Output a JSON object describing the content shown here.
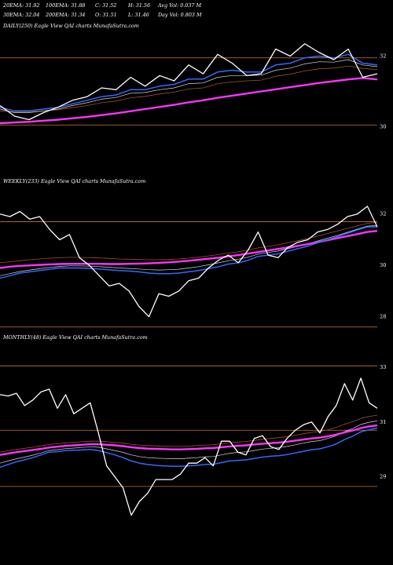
{
  "header": {
    "line1": [
      "20EMA: 31.92",
      "100EMA: 31.88",
      "C: 31.52",
      "H: 31.56",
      "Avg Vol: 0.037 M"
    ],
    "line2": [
      "30EMA: 32.04",
      "200EMA: 31.34",
      "O: 31.51",
      "L: 31.46",
      "Day Vol: 0.803 M"
    ]
  },
  "colors": {
    "price": "#ffffff",
    "ema_fast": "#2f6bff",
    "ema_slow": "#ff33ff",
    "ma_white": "#dcdcdc",
    "ma_brown": "#a0522d",
    "level_line": "#cc7a29",
    "background": "#000000"
  },
  "chart_data": [
    {
      "type": "line",
      "label": "DAILY(250) Eagle  View  QAI charts MunafaSutra.com",
      "ylim": [
        29.7,
        32.7
      ],
      "yticks": [
        32,
        30
      ],
      "levels": [
        31.95,
        30.05
      ],
      "series": [
        {
          "role": "price",
          "values": [
            30.6,
            30.3,
            30.2,
            30.4,
            30.55,
            30.75,
            30.85,
            31.1,
            31.05,
            31.4,
            31.15,
            31.45,
            31.3,
            31.75,
            31.5,
            32.05,
            31.8,
            31.45,
            31.5,
            32.2,
            32.0,
            32.35,
            32.1,
            31.9,
            32.2,
            31.4,
            31.5
          ]
        },
        {
          "role": "ema_fast",
          "values": [
            30.55,
            30.45,
            30.45,
            30.5,
            30.55,
            30.65,
            30.75,
            30.85,
            30.9,
            31.05,
            31.05,
            31.15,
            31.2,
            31.35,
            31.35,
            31.55,
            31.6,
            31.55,
            31.55,
            31.75,
            31.8,
            31.95,
            32.0,
            31.95,
            32.05,
            31.8,
            31.75
          ]
        },
        {
          "role": "ema_slow",
          "values": [
            30.1,
            30.12,
            30.14,
            30.17,
            30.2,
            30.24,
            30.28,
            30.33,
            30.38,
            30.44,
            30.5,
            30.56,
            30.62,
            30.69,
            30.75,
            30.82,
            30.88,
            30.94,
            31.0,
            31.06,
            31.12,
            31.18,
            31.24,
            31.29,
            31.34,
            31.38,
            31.34
          ]
        },
        {
          "role": "ma_white",
          "values": [
            30.5,
            30.4,
            30.4,
            30.45,
            30.5,
            30.6,
            30.68,
            30.78,
            30.83,
            30.95,
            30.97,
            31.05,
            31.1,
            31.22,
            31.24,
            31.4,
            31.45,
            31.45,
            31.46,
            31.6,
            31.66,
            31.78,
            31.84,
            31.83,
            31.9,
            31.75,
            31.7
          ]
        },
        {
          "role": "ma_brown",
          "values": [
            30.45,
            30.42,
            30.42,
            30.45,
            30.48,
            30.54,
            30.6,
            30.68,
            30.73,
            30.82,
            30.86,
            30.93,
            30.98,
            31.07,
            31.1,
            31.22,
            31.27,
            31.3,
            31.32,
            31.43,
            31.49,
            31.58,
            31.64,
            31.66,
            31.72,
            31.65,
            31.62
          ]
        }
      ]
    },
    {
      "type": "line",
      "label": "WEEKLY(233) Eagle  View  QAI charts MunafaSutra.com",
      "ylim": [
        27.5,
        33.0
      ],
      "yticks": [
        32,
        30,
        28
      ],
      "levels": [
        31.7,
        27.6
      ],
      "series": [
        {
          "role": "price",
          "values": [
            32.0,
            31.9,
            32.1,
            31.8,
            31.9,
            31.4,
            31.0,
            31.2,
            30.3,
            30.0,
            29.6,
            29.2,
            29.3,
            29.0,
            28.4,
            28.0,
            28.9,
            28.8,
            29.0,
            29.4,
            29.5,
            29.9,
            30.2,
            30.4,
            30.1,
            30.6,
            31.3,
            30.4,
            30.3,
            30.7,
            30.9,
            31.0,
            31.3,
            31.4,
            31.6,
            31.9,
            32.0,
            32.3,
            31.5
          ]
        },
        {
          "role": "ema_fast",
          "values": [
            29.5,
            29.6,
            29.7,
            29.75,
            29.8,
            29.85,
            29.9,
            29.9,
            29.9,
            29.88,
            29.86,
            29.83,
            29.8,
            29.78,
            29.75,
            29.7,
            29.68,
            29.68,
            29.7,
            29.75,
            29.8,
            29.87,
            29.95,
            30.05,
            30.1,
            30.2,
            30.35,
            30.4,
            30.45,
            30.55,
            30.65,
            30.75,
            30.88,
            31.0,
            31.12,
            31.25,
            31.38,
            31.5,
            31.5
          ]
        },
        {
          "role": "ema_slow",
          "values": [
            29.9,
            29.95,
            29.98,
            30.0,
            30.02,
            30.04,
            30.05,
            30.06,
            30.06,
            30.06,
            30.06,
            30.05,
            30.05,
            30.06,
            30.07,
            30.08,
            30.1,
            30.12,
            30.15,
            30.18,
            30.22,
            30.26,
            30.3,
            30.35,
            30.4,
            30.46,
            30.52,
            30.58,
            30.64,
            30.7,
            30.76,
            30.83,
            30.9,
            30.98,
            31.06,
            31.14,
            31.22,
            31.3,
            31.34
          ]
        },
        {
          "role": "ma_white",
          "values": [
            29.6,
            29.68,
            29.76,
            29.82,
            29.87,
            29.92,
            29.96,
            29.98,
            29.98,
            29.97,
            29.95,
            29.93,
            29.9,
            29.88,
            29.86,
            29.83,
            29.82,
            29.83,
            29.85,
            29.9,
            29.95,
            30.02,
            30.1,
            30.18,
            30.24,
            30.32,
            30.44,
            30.5,
            30.56,
            30.65,
            30.74,
            30.83,
            30.95,
            31.06,
            31.17,
            31.29,
            31.41,
            31.53,
            31.55
          ]
        },
        {
          "role": "ma_brown",
          "values": [
            30.1,
            30.14,
            30.18,
            30.22,
            30.25,
            30.28,
            30.3,
            30.31,
            30.31,
            30.3,
            30.29,
            30.27,
            30.25,
            30.24,
            30.23,
            30.22,
            30.22,
            30.23,
            30.25,
            30.28,
            30.32,
            30.37,
            30.42,
            30.48,
            30.53,
            30.6,
            30.68,
            30.74,
            30.8,
            30.88,
            30.96,
            31.05,
            31.14,
            31.24,
            31.34,
            31.44,
            31.54,
            31.64,
            31.68
          ]
        }
      ]
    },
    {
      "type": "line",
      "label": "MONTHLY(48) Eagle  View  QAI charts MunafaSutra.com",
      "ylim": [
        27.5,
        33.8
      ],
      "yticks": [
        33,
        31,
        29
      ],
      "levels": [
        33.05,
        30.7,
        28.65
      ],
      "series": [
        {
          "role": "price",
          "values": [
            32.0,
            31.95,
            32.05,
            31.6,
            31.8,
            32.1,
            32.2,
            31.5,
            32.0,
            31.3,
            31.5,
            31.7,
            30.6,
            29.4,
            29.0,
            28.6,
            27.6,
            28.1,
            28.4,
            28.9,
            28.9,
            28.9,
            29.1,
            29.5,
            29.5,
            29.7,
            29.4,
            30.3,
            30.3,
            29.9,
            29.8,
            30.4,
            30.5,
            30.1,
            30.0,
            30.4,
            30.7,
            30.9,
            31.0,
            30.6,
            31.2,
            31.6,
            32.4,
            31.8,
            32.6,
            31.7,
            31.5
          ]
        },
        {
          "role": "ema_fast",
          "values": [
            29.35,
            29.45,
            29.55,
            29.62,
            29.7,
            29.8,
            29.9,
            29.92,
            29.96,
            29.97,
            29.98,
            30.0,
            29.96,
            29.88,
            29.8,
            29.7,
            29.58,
            29.5,
            29.45,
            29.42,
            29.4,
            29.38,
            29.38,
            29.4,
            29.42,
            29.45,
            29.46,
            29.52,
            29.58,
            29.6,
            29.62,
            29.67,
            29.72,
            29.75,
            29.77,
            29.81,
            29.87,
            29.93,
            29.99,
            30.02,
            30.1,
            30.2,
            30.36,
            30.48,
            30.64,
            30.72,
            30.78
          ]
        },
        {
          "role": "ema_slow",
          "values": [
            29.8,
            29.85,
            29.9,
            29.94,
            29.98,
            30.02,
            30.07,
            30.1,
            30.13,
            30.15,
            30.17,
            30.19,
            30.19,
            30.17,
            30.15,
            30.12,
            30.08,
            30.05,
            30.03,
            30.02,
            30.01,
            30.0,
            30.0,
            30.01,
            30.02,
            30.04,
            30.05,
            30.08,
            30.11,
            30.13,
            30.15,
            30.18,
            30.21,
            30.23,
            30.25,
            30.28,
            30.32,
            30.36,
            30.4,
            30.43,
            30.48,
            30.54,
            30.62,
            30.69,
            30.78,
            30.84,
            30.88
          ]
        },
        {
          "role": "ma_white",
          "values": [
            29.5,
            29.58,
            29.66,
            29.72,
            29.79,
            29.87,
            29.96,
            29.99,
            30.03,
            30.05,
            30.07,
            30.1,
            30.08,
            30.02,
            29.96,
            29.89,
            29.8,
            29.74,
            29.7,
            29.68,
            29.67,
            29.66,
            29.66,
            29.68,
            29.7,
            29.73,
            29.74,
            29.8,
            29.86,
            29.89,
            29.91,
            29.96,
            30.01,
            30.04,
            30.07,
            30.11,
            30.17,
            30.23,
            30.29,
            30.32,
            30.4,
            30.5,
            30.65,
            30.76,
            30.91,
            30.99,
            31.04
          ]
        },
        {
          "role": "ma_brown",
          "values": [
            29.9,
            29.95,
            30.0,
            30.04,
            30.08,
            30.13,
            30.18,
            30.21,
            30.24,
            30.26,
            30.28,
            30.3,
            30.3,
            30.28,
            30.26,
            30.23,
            30.19,
            30.16,
            30.14,
            30.13,
            30.12,
            30.11,
            30.11,
            30.12,
            30.14,
            30.16,
            30.17,
            30.21,
            30.25,
            30.27,
            30.29,
            30.33,
            30.37,
            30.4,
            30.43,
            30.47,
            30.52,
            30.57,
            30.62,
            30.66,
            30.72,
            30.8,
            30.92,
            31.01,
            31.13,
            31.2,
            31.25
          ]
        }
      ]
    }
  ]
}
